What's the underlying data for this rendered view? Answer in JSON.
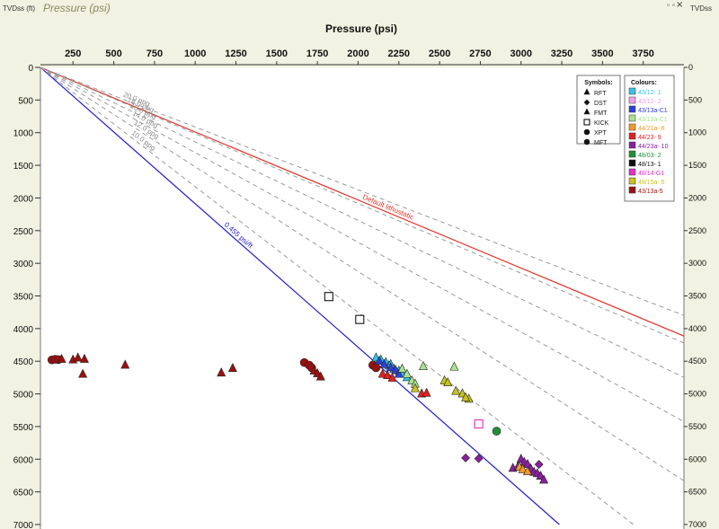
{
  "window": {
    "title": "Pressure (psi)",
    "left_axis_label": "TVDss (ft)",
    "right_axis_label": "TVDss",
    "pin_icon": "pin-icon",
    "restore_icon": "restore-icon",
    "close_icon": "close-icon"
  },
  "chart_data": {
    "type": "scatter",
    "xlabel": "Pressure (psi)",
    "ylabel": "TVDss (ft)",
    "xlim": [
      50,
      4000
    ],
    "ylim": [
      0,
      7000
    ],
    "x_ticks": [
      250,
      500,
      750,
      1000,
      1250,
      1500,
      1750,
      2000,
      2250,
      2500,
      2750,
      3000,
      3250,
      3500,
      3750
    ],
    "y_ticks": [
      0,
      500,
      1000,
      1500,
      2000,
      2500,
      3000,
      3500,
      4000,
      4500,
      5000,
      5500,
      6000,
      6500,
      7000
    ],
    "y_inverted": true,
    "gradient_lines": [
      {
        "label": "0.455 psi/ft",
        "color": "#1f1fc8",
        "style": "solid",
        "psi_per_ft": 0.455
      },
      {
        "label": "Default lithostatic",
        "color": "#e0352b",
        "style": "solid",
        "psi_per_ft": 0.96
      },
      {
        "label": "10.0 ppg",
        "color": "#9a9a9a",
        "style": "dashed",
        "psi_per_ft": 0.52
      },
      {
        "label": "12.0 ppg",
        "color": "#9a9a9a",
        "style": "dashed",
        "psi_per_ft": 0.624
      },
      {
        "label": "14.0 ppg",
        "color": "#9a9a9a",
        "style": "dashed",
        "psi_per_ft": 0.728
      },
      {
        "label": "16.0 ppg",
        "color": "#9a9a9a",
        "style": "dashed",
        "psi_per_ft": 0.832
      },
      {
        "label": "18.0 ppg",
        "color": "#9a9a9a",
        "style": "dashed",
        "psi_per_ft": 0.936
      },
      {
        "label": "20.0 ppg",
        "color": "#9a9a9a",
        "style": "dashed",
        "psi_per_ft": 1.04
      }
    ],
    "symbols_legend": {
      "title": "Symbols:",
      "items": [
        {
          "symbol": "triangle",
          "label": "RFT"
        },
        {
          "symbol": "diamond",
          "label": "DST"
        },
        {
          "symbol": "triangle",
          "label": "FMT"
        },
        {
          "symbol": "square-open",
          "label": "KICK"
        },
        {
          "symbol": "circle",
          "label": "XPT"
        },
        {
          "symbol": "circle",
          "label": "MFT"
        }
      ]
    },
    "colours_legend": {
      "title": "Colours:",
      "items": [
        {
          "label": "43/12- 1",
          "color": "#36c3e8"
        },
        {
          "label": "43/12- 2",
          "color": "#f2a2e6"
        },
        {
          "label": "43/13a-C1",
          "color": "#2f3fd6"
        },
        {
          "label": "43/13a-C1",
          "color": "#a9e28e"
        },
        {
          "label": "44/21a- 6",
          "color": "#f29a2b"
        },
        {
          "label": "44/23- 9",
          "color": "#e22020"
        },
        {
          "label": "44/23a- 10",
          "color": "#8a1fa0"
        },
        {
          "label": "48/03- 2",
          "color": "#1f8f3a"
        },
        {
          "label": "48/13- 1",
          "color": "#111111"
        },
        {
          "label": "48/14-G1",
          "color": "#e62ec8"
        },
        {
          "label": "48/15a- 5",
          "color": "#c7c21e"
        },
        {
          "label": "43/13a-5",
          "color": "#9c1010"
        }
      ]
    },
    "series": [
      {
        "well": "43/13a-5",
        "color": "#9c1010",
        "symbol": "circle",
        "points": [
          [
            120,
            4480
          ],
          [
            140,
            4470
          ],
          [
            160,
            4475
          ],
          [
            1670,
            4520
          ],
          [
            1700,
            4560
          ],
          [
            1715,
            4600
          ],
          [
            2090,
            4560
          ],
          [
            2110,
            4600
          ]
        ]
      },
      {
        "well": "43/13a-5",
        "color": "#9c1010",
        "symbol": "triangle",
        "points": [
          [
            180,
            4470
          ],
          [
            250,
            4480
          ],
          [
            280,
            4450
          ],
          [
            320,
            4470
          ],
          [
            310,
            4700
          ],
          [
            570,
            4560
          ],
          [
            1160,
            4680
          ],
          [
            1230,
            4610
          ],
          [
            1730,
            4650
          ],
          [
            1750,
            4690
          ],
          [
            1770,
            4740
          ]
        ]
      },
      {
        "well": "44/23- 9",
        "color": "#e22020",
        "symbol": "triangle",
        "points": [
          [
            2150,
            4700
          ],
          [
            2180,
            4720
          ],
          [
            2210,
            4760
          ],
          [
            2390,
            5000
          ],
          [
            2420,
            4990
          ]
        ]
      },
      {
        "well": "43/12- 1",
        "color": "#36c3e8",
        "symbol": "triangle",
        "points": [
          [
            2110,
            4450
          ],
          [
            2140,
            4480
          ],
          [
            2170,
            4520
          ],
          [
            2190,
            4570
          ],
          [
            2220,
            4620
          ],
          [
            2250,
            4650
          ],
          [
            2270,
            4700
          ],
          [
            2300,
            4750
          ],
          [
            2200,
            4550
          ]
        ]
      },
      {
        "well": "43/13a-C1",
        "color": "#2f3fd6",
        "symbol": "triangle",
        "points": [
          [
            2130,
            4500
          ],
          [
            2160,
            4550
          ],
          [
            2200,
            4600
          ],
          [
            2230,
            4640
          ],
          [
            2250,
            4700
          ]
        ]
      },
      {
        "well": "43/13a-C1",
        "color": "#a9e28e",
        "symbol": "triangle",
        "points": [
          [
            2270,
            4620
          ],
          [
            2300,
            4700
          ],
          [
            2330,
            4800
          ],
          [
            2350,
            4850
          ],
          [
            2400,
            4580
          ],
          [
            2590,
            4590
          ]
        ]
      },
      {
        "well": "48/15a- 5",
        "color": "#c7c21e",
        "symbol": "triangle",
        "points": [
          [
            2350,
            4920
          ],
          [
            2530,
            4800
          ],
          [
            2550,
            4830
          ],
          [
            2600,
            4960
          ],
          [
            2640,
            5000
          ],
          [
            2680,
            5080
          ],
          [
            2660,
            5060
          ]
        ]
      },
      {
        "well": "44/23a- 10",
        "color": "#8a1fa0",
        "symbol": "triangle",
        "points": [
          [
            2950,
            6140
          ],
          [
            2980,
            6120
          ],
          [
            3000,
            6000
          ],
          [
            3020,
            6050
          ],
          [
            3040,
            6080
          ],
          [
            3060,
            6150
          ],
          [
            3080,
            6200
          ],
          [
            3100,
            6220
          ],
          [
            3120,
            6260
          ],
          [
            3140,
            6320
          ]
        ]
      },
      {
        "well": "44/23a- 10",
        "color": "#8a1fa0",
        "symbol": "diamond",
        "points": [
          [
            2660,
            5980
          ],
          [
            2740,
            5990
          ],
          [
            3110,
            6080
          ]
        ]
      },
      {
        "well": "44/21a- 6",
        "color": "#f29a2b",
        "symbol": "triangle",
        "points": [
          [
            2990,
            6120
          ],
          [
            3010,
            6160
          ],
          [
            3040,
            6190
          ]
        ]
      },
      {
        "well": "48/03- 2",
        "color": "#1f8f3a",
        "symbol": "circle",
        "points": [
          [
            2850,
            5570
          ]
        ]
      },
      {
        "well": "48/13- 1",
        "color": "#111111",
        "symbol": "square-open",
        "points": [
          [
            1820,
            3510
          ],
          [
            2010,
            3860
          ]
        ]
      },
      {
        "well": "48/14-G1",
        "color": "#e62ec8",
        "symbol": "square-open",
        "points": [
          [
            2740,
            5460
          ]
        ]
      }
    ]
  }
}
